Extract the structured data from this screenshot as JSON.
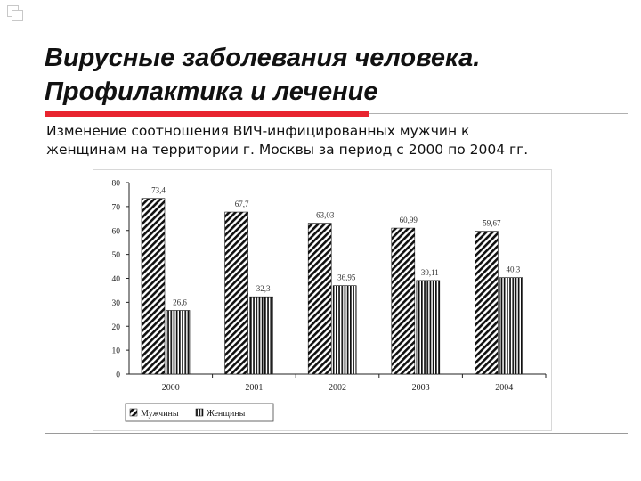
{
  "slide": {
    "title_line1": "Вирусные заболевания человека.",
    "title_line2": "Профилактика и лечение",
    "subtitle_line1": "Изменение соотношения ВИЧ-инфицированных мужчин к",
    "subtitle_line2": "женщинам на территории г. Москвы за период с 2000 по 2004 гг."
  },
  "chart_data": {
    "type": "bar",
    "title": "",
    "xlabel": "",
    "ylabel": "",
    "ylim": [
      0,
      80
    ],
    "yticks": [
      0,
      10,
      20,
      30,
      40,
      50,
      60,
      70,
      80
    ],
    "ytick_labels": [
      "0",
      "10",
      "20",
      "30",
      "40",
      "50",
      "60",
      "70",
      "80"
    ],
    "categories": [
      "2000",
      "2001",
      "2002",
      "2003",
      "2004"
    ],
    "series": [
      {
        "name": "Мужчины",
        "values": [
          73.4,
          67.7,
          63.03,
          60.99,
          59.67
        ],
        "labels": [
          "73,4",
          "67,7",
          "63,03",
          "60,99",
          "59,67"
        ],
        "pattern": "diagonal-hatch"
      },
      {
        "name": "Женщины",
        "values": [
          26.6,
          32.3,
          36.95,
          39.11,
          40.3
        ],
        "labels": [
          "26,6",
          "32,3",
          "36,95",
          "39,11",
          "40,3"
        ],
        "pattern": "vertical-stripes"
      }
    ],
    "grid": false,
    "legend": "bottom-left",
    "colors": {
      "bar_fill": "#111111",
      "background": "#ffffff"
    }
  }
}
